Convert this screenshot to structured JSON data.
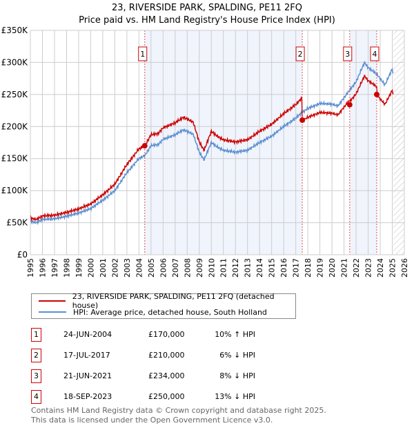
{
  "chart_data": {
    "type": "line",
    "title": "23, RIVERSIDE PARK, SPALDING, PE11 2FQ",
    "subtitle": "Price paid vs. HM Land Registry's House Price Index (HPI)",
    "xlim": [
      1995,
      2026
    ],
    "ylim": [
      0,
      350000
    ],
    "x_ticks": [
      "1995",
      "1996",
      "1997",
      "1998",
      "1999",
      "2000",
      "2001",
      "2002",
      "2003",
      "2004",
      "2005",
      "2006",
      "2007",
      "2008",
      "2009",
      "2010",
      "2011",
      "2012",
      "2013",
      "2014",
      "2015",
      "2016",
      "2017",
      "2018",
      "2019",
      "2020",
      "2021",
      "2022",
      "2023",
      "2024",
      "2025",
      "2026"
    ],
    "y_ticks": [
      {
        "v": 0,
        "label": "£0"
      },
      {
        "v": 50000,
        "label": "£50K"
      },
      {
        "v": 100000,
        "label": "£100K"
      },
      {
        "v": 150000,
        "label": "£150K"
      },
      {
        "v": 200000,
        "label": "£200K"
      },
      {
        "v": 250000,
        "label": "£250K"
      },
      {
        "v": 300000,
        "label": "£300K"
      },
      {
        "v": 350000,
        "label": "£350K"
      }
    ],
    "series": [
      {
        "name": "23, RIVERSIDE PARK, SPALDING, PE11 2FQ (detached house)",
        "color": "#cc0000"
      },
      {
        "name": "HPI: Average price, detached house, South Holland",
        "color": "#5b8fd0",
        "points": [
          [
            1995.0,
            52000
          ],
          [
            1995.5,
            50000
          ],
          [
            1996,
            55000
          ],
          [
            1997,
            56000
          ],
          [
            1998,
            60000
          ],
          [
            1999,
            65000
          ],
          [
            2000,
            72000
          ],
          [
            2001,
            85000
          ],
          [
            2002,
            100000
          ],
          [
            2003,
            128000
          ],
          [
            2004,
            150000
          ],
          [
            2004.5,
            155000
          ],
          [
            2005,
            170000
          ],
          [
            2005.6,
            172000
          ],
          [
            2006,
            180000
          ],
          [
            2007,
            187000
          ],
          [
            2007.7,
            195000
          ],
          [
            2008.5,
            188000
          ],
          [
            2009.0,
            160000
          ],
          [
            2009.4,
            148000
          ],
          [
            2010,
            175000
          ],
          [
            2010.5,
            168000
          ],
          [
            2011,
            163000
          ],
          [
            2012,
            160000
          ],
          [
            2013,
            163000
          ],
          [
            2014,
            175000
          ],
          [
            2015,
            185000
          ],
          [
            2016,
            200000
          ],
          [
            2017,
            213000
          ],
          [
            2017.5,
            222000
          ],
          [
            2018,
            228000
          ],
          [
            2019,
            236000
          ],
          [
            2020,
            235000
          ],
          [
            2020.5,
            232000
          ],
          [
            2021,
            245000
          ],
          [
            2022,
            270000
          ],
          [
            2022.7,
            300000
          ],
          [
            2023,
            292000
          ],
          [
            2023.7,
            282000
          ],
          [
            2024.4,
            265000
          ],
          [
            2025.0,
            290000
          ],
          [
            2025.1,
            280000
          ]
        ]
      }
    ],
    "sales": [
      {
        "n": "1",
        "x": 2004.48,
        "date": "24-JUN-2004",
        "price": 170000,
        "price_label": "£170,000",
        "hpi": "10% ↑ HPI"
      },
      {
        "n": "2",
        "x": 2017.54,
        "date": "17-JUL-2017",
        "price": 210000,
        "price_label": "£210,000",
        "hpi": "6% ↓ HPI"
      },
      {
        "n": "3",
        "x": 2021.47,
        "date": "21-JUN-2021",
        "price": 234000,
        "price_label": "£234,000",
        "hpi": "8% ↓ HPI"
      },
      {
        "n": "4",
        "x": 2023.71,
        "date": "18-SEP-2023",
        "price": 250000,
        "price_label": "£250,000",
        "hpi": "13% ↓ HPI"
      }
    ],
    "forecast_from": 2025.1
  },
  "footer": [
    "Contains HM Land Registry data © Crown copyright and database right 2025.",
    "This data is licensed under the Open Government Licence v3.0."
  ]
}
